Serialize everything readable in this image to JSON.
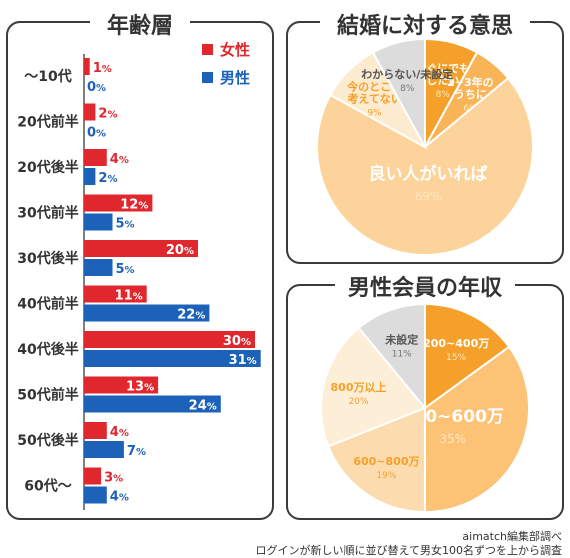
{
  "age_chart": {
    "title": "年齢層",
    "legend": [
      {
        "label": "女性",
        "color": "#e0272e"
      },
      {
        "label": "男性",
        "color": "#1c62b8"
      }
    ],
    "chart_data": {
      "type": "bar",
      "orientation": "horizontal",
      "categories": [
        "〜10代",
        "20代前半",
        "20代後半",
        "30代前半",
        "30代後半",
        "40代前半",
        "40代後半",
        "50代前半",
        "50代後半",
        "60代〜"
      ],
      "series": [
        {
          "name": "女性",
          "color": "#e0272e",
          "values": [
            1,
            2,
            4,
            12,
            20,
            11,
            30,
            13,
            4,
            3
          ]
        },
        {
          "name": "男性",
          "color": "#1c62b8",
          "values": [
            0,
            0,
            2,
            5,
            5,
            22,
            31,
            24,
            7,
            4
          ]
        }
      ],
      "unit": "%",
      "xlim": [
        0,
        31
      ]
    }
  },
  "marriage_chart": {
    "title": "結婚に対する意思",
    "chart_data": {
      "type": "pie",
      "slices": [
        {
          "label": "すぐにでも\nしたい",
          "value": 8,
          "color": "#f5a02a",
          "label_color": "#ffffff",
          "value_color": "#fde7c2"
        },
        {
          "label": "2~3年の\nうちに",
          "value": 6,
          "color": "#f9b458",
          "label_color": "#ffffff",
          "value_color": "#fde7c2"
        },
        {
          "label": "良い人がいれば",
          "value": 69,
          "color": "#fcd39a",
          "label_color": "#ffffff",
          "value_color": "#fde7c2"
        },
        {
          "label": "今のところ\n考えてない",
          "value": 9,
          "color": "#fdebd0",
          "label_color": "#f5a02a",
          "value_color": "#f5a02a"
        },
        {
          "label": "わからない/未設定",
          "value": 8,
          "color": "#dcdcdc",
          "label_color": "#555555",
          "value_color": "#777777"
        }
      ],
      "unit": "%"
    }
  },
  "income_chart": {
    "title": "男性会員の年収",
    "chart_data": {
      "type": "pie",
      "slices": [
        {
          "label": "200~400万",
          "value": 15,
          "color": "#f5a02a",
          "label_color": "#ffffff",
          "value_color": "#fde7c2"
        },
        {
          "label": "400~600万",
          "value": 35,
          "color": "#fcc276",
          "label_color": "#ffffff",
          "value_color": "#fde7c2"
        },
        {
          "label": "600~800万",
          "value": 19,
          "color": "#fcdcae",
          "label_color": "#f5a02a",
          "value_color": "#f5a02a"
        },
        {
          "label": "800万以上",
          "value": 20,
          "color": "#fdeed8",
          "label_color": "#f5a02a",
          "value_color": "#f5a02a"
        },
        {
          "label": "未設定",
          "value": 11,
          "color": "#dcdcdc",
          "label_color": "#555555",
          "value_color": "#777777"
        }
      ],
      "unit": "%"
    }
  },
  "footer": {
    "line1": "aimatch編集部調べ",
    "line2": "ログインが新しい順に並び替えて男女100名ずつを上から調査"
  }
}
